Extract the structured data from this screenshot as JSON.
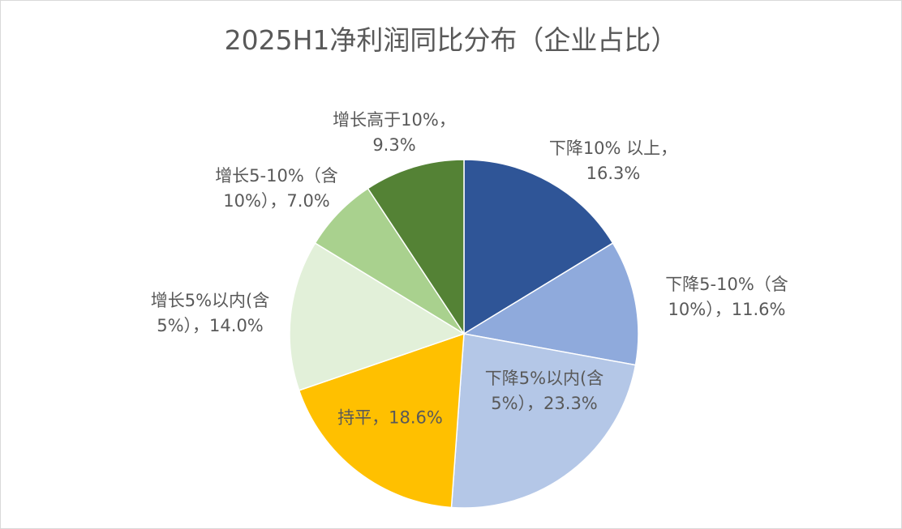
{
  "chart_data": {
    "type": "pie",
    "title": "2025H1净利润同比分布（企业占比）",
    "start_angle": "12 o'clock",
    "direction": "clockwise",
    "slices": [
      {
        "line1": "下降10% 以上，",
        "line2": "16.3%",
        "value": 16.3,
        "color": "#2F5597"
      },
      {
        "line1": "下降5-10%（含",
        "line2": "10%），11.6%",
        "value": 11.6,
        "color": "#8FAADC"
      },
      {
        "line1": "下降5%以内(含",
        "line2": "5%），23.3%",
        "value": 23.3,
        "color": "#B4C7E7"
      },
      {
        "line1": "持平，18.6%",
        "line2": "",
        "value": 18.6,
        "color": "#FFC000"
      },
      {
        "line1": "增长5%以内(含",
        "line2": "5%），14.0%",
        "value": 14.0,
        "color": "#E2F0D9"
      },
      {
        "line1": "增长5-10%（含",
        "line2": "10%），7.0%",
        "value": 7.0,
        "color": "#A9D18E"
      },
      {
        "line1": "增长高于10%，",
        "line2": "9.3%",
        "value": 9.3,
        "color": "#548235"
      }
    ]
  }
}
